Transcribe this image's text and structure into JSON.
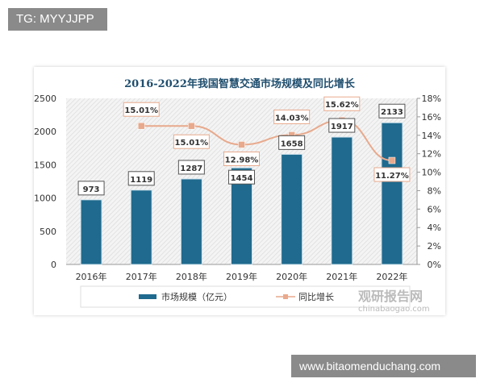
{
  "overlay": {
    "tag": "TG: MYYJJPP",
    "site": "www.bitaomenduchang.com"
  },
  "watermark": {
    "name": "观研报告网",
    "url": "chinabaogao.com"
  },
  "chart_data": {
    "type": "bar+line",
    "title": "2016-2022年我国智慧交通市场规模及同比增长",
    "categories": [
      "2016年",
      "2017年",
      "2018年",
      "2019年",
      "2020年",
      "2021年",
      "2022年"
    ],
    "series": [
      {
        "name": "市场规模（亿元）",
        "type": "bar",
        "axis": "left",
        "values": [
          973,
          1119,
          1287,
          1454,
          1658,
          1917,
          2133
        ],
        "labels": [
          "973",
          "1119",
          "1287",
          "1454",
          "1658",
          "1917",
          "2133"
        ],
        "color": "#1f6a8e"
      },
      {
        "name": "同比增长",
        "type": "line",
        "axis": "right",
        "values": [
          null,
          15.01,
          15.01,
          12.98,
          14.03,
          15.62,
          11.27
        ],
        "labels": [
          "",
          "15.01%",
          "15.01%",
          "12.98%",
          "14.03%",
          "15.62%",
          "11.27%"
        ],
        "color": "#e8a98c"
      }
    ],
    "left_axis": {
      "range": [
        0,
        2500
      ],
      "ticks": [
        "0",
        "500",
        "1000",
        "1500",
        "2000",
        "2500"
      ]
    },
    "right_axis": {
      "range": [
        0,
        18
      ],
      "ticks": [
        "0%",
        "2%",
        "4%",
        "6%",
        "8%",
        "10%",
        "12%",
        "14%",
        "16%",
        "18%"
      ]
    },
    "legend": "bottom",
    "grid": false
  }
}
